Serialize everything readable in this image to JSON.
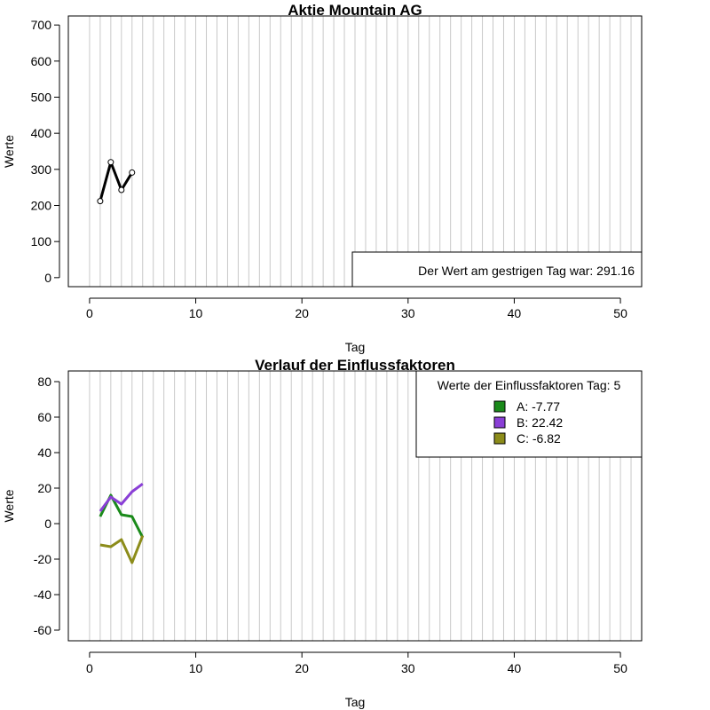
{
  "chart_data": [
    {
      "type": "line",
      "title": "Aktie  Mountain AG",
      "xlabel": "Tag",
      "ylabel": "Werte",
      "xlim": [
        -2,
        52
      ],
      "ylim": [
        -25,
        725
      ],
      "xticks": [
        0,
        10,
        20,
        30,
        40,
        50
      ],
      "yticks": [
        0,
        100,
        200,
        300,
        400,
        500,
        600,
        700
      ],
      "grid": "vertical",
      "series": [
        {
          "color": "#000000",
          "points": [
            {
              "x": 1,
              "y": 212
            },
            {
              "x": 2,
              "y": 320
            },
            {
              "x": 3,
              "y": 243
            },
            {
              "x": 4,
              "y": 291.16
            }
          ]
        }
      ],
      "annotation": {
        "text": "Der Wert am gestrigen Tag war: 291.16",
        "placement": "bottom-right"
      }
    },
    {
      "type": "line",
      "title": "Verlauf der Einflussfaktoren",
      "xlabel": "Tag",
      "ylabel": "Werte",
      "xlim": [
        -2,
        52
      ],
      "ylim": [
        -66,
        86
      ],
      "xticks": [
        0,
        10,
        20,
        30,
        40,
        50
      ],
      "yticks": [
        -60,
        -40,
        -20,
        0,
        20,
        40,
        60,
        80
      ],
      "grid": "vertical",
      "legend": {
        "title": "Werte der Einflussfaktoren Tag: 5",
        "placement": "top-right",
        "entries": [
          "A: -7.77",
          "B: 22.42",
          "C: -6.82"
        ]
      },
      "series": [
        {
          "color": "#1a8a1a",
          "points": [
            {
              "x": 1,
              "y": 4
            },
            {
              "x": 2,
              "y": 16
            },
            {
              "x": 3,
              "y": 5
            },
            {
              "x": 4,
              "y": 4
            },
            {
              "x": 5,
              "y": -7.77
            }
          ]
        },
        {
          "color": "#8a3fd6",
          "points": [
            {
              "x": 1,
              "y": 7
            },
            {
              "x": 2,
              "y": 15
            },
            {
              "x": 3,
              "y": 11
            },
            {
              "x": 4,
              "y": 18
            },
            {
              "x": 5,
              "y": 22.42
            }
          ]
        },
        {
          "color": "#8c8c1a",
          "points": [
            {
              "x": 1,
              "y": -12
            },
            {
              "x": 2,
              "y": -13
            },
            {
              "x": 3,
              "y": -9
            },
            {
              "x": 4,
              "y": -22
            },
            {
              "x": 5,
              "y": -6.82
            }
          ]
        }
      ]
    }
  ]
}
